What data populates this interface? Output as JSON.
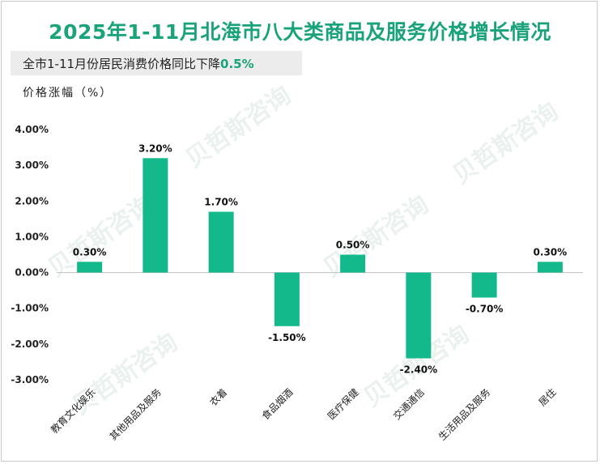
{
  "title": "2025年1-11月北海市八大类商品及服务价格增长情况",
  "subtitle_prefix": "全市1-11月份居民消费价格同比下降",
  "subtitle_value": "0.5%",
  "y_axis_title": "价格涨幅（%）",
  "watermark": "贝哲斯咨询",
  "colors": {
    "bar": "#13b98a",
    "title": "#1aa37a",
    "axis": "#bfbfbf"
  },
  "chart_data": {
    "type": "bar",
    "categories": [
      "教育文化娱乐",
      "其他用品及服务",
      "衣着",
      "食品烟酒",
      "医疗保健",
      "交通通信",
      "生活用品及服务",
      "居住"
    ],
    "values": [
      0.3,
      3.2,
      1.7,
      -1.5,
      0.5,
      -2.4,
      -0.7,
      0.3
    ],
    "data_labels": [
      "0.30%",
      "3.20%",
      "1.70%",
      "-1.50%",
      "0.50%",
      "-2.40%",
      "-0.70%",
      "0.30%"
    ],
    "ylim": [
      -3,
      4
    ],
    "y_ticks": [
      "4.00%",
      "3.00%",
      "2.00%",
      "1.00%",
      "0.00%",
      "-1.00%",
      "-2.00%",
      "-3.00%"
    ],
    "y_tick_values": [
      4,
      3,
      2,
      1,
      0,
      -1,
      -2,
      -3
    ],
    "title": "2025年1-11月北海市八大类商品及服务价格增长情况",
    "ylabel": "价格涨幅（%）",
    "xlabel": "",
    "grid": false
  }
}
